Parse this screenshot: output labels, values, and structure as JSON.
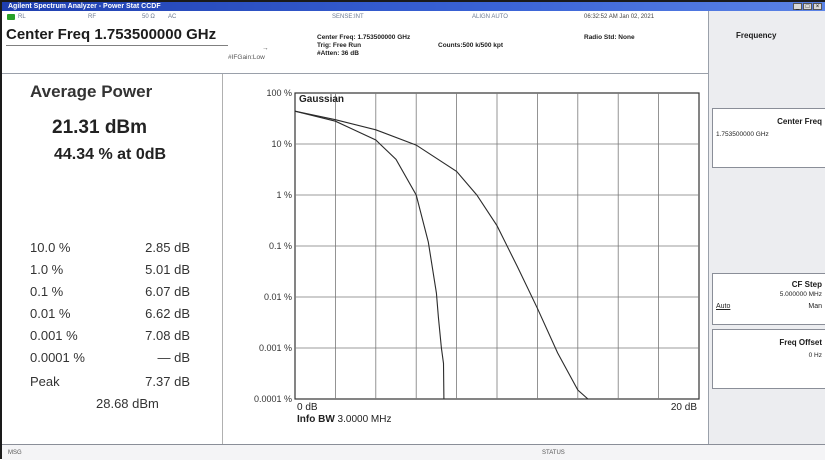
{
  "window": {
    "title": "Agilent Spectrum Analyzer - Power Stat CCDF"
  },
  "meas_bar": {
    "indicator_rl": "RL",
    "hidden_labels": [
      "RF",
      "50 Ω",
      "AC",
      "SENSE:INT",
      "ALIGN AUTO"
    ],
    "timestamp": "06:32:52 AM Jan 02, 2021",
    "center_freq_big": "Center Freq 1.753500000 GHz",
    "ifgain": "#IFGain:Low",
    "center_freq_small": "Center Freq: 1.753500000 GHz",
    "trig": "Trig: Free Run",
    "counts": "Counts:500 k/500 kpt",
    "atten": "#Atten: 36 dB",
    "radio_std": "Radio Std: None"
  },
  "left": {
    "avg_title": "Average Power",
    "avg_dbm": "21.31 dBm",
    "avg_pct": "44.34 % at 0dB",
    "rows": [
      {
        "label": "10.0 %",
        "value": "2.85 dB"
      },
      {
        "label": "1.0 %",
        "value": "5.01 dB"
      },
      {
        "label": "0.1 %",
        "value": "6.07 dB"
      },
      {
        "label": "0.01 %",
        "value": "6.62 dB"
      },
      {
        "label": "0.001 %",
        "value": "7.08 dB"
      },
      {
        "label": "0.0001 %",
        "value": "— dB"
      },
      {
        "label": "Peak",
        "value": "7.37 dB"
      }
    ],
    "peak_dbm": "28.68 dBm"
  },
  "plot": {
    "label": "Gaussian",
    "y_ticks": [
      "100 %",
      "10 %",
      "1 %",
      "0.1 %",
      "0.01 %",
      "0.001 %",
      "0.0001 %"
    ],
    "x_start": "0 dB",
    "x_end": "20 dB",
    "info_bw_label": "Info BW",
    "info_bw_value": "3.0000 MHz"
  },
  "chart_data": {
    "type": "line",
    "title": "Gaussian",
    "xlabel": "",
    "ylabel": "",
    "xlim": [
      0,
      20
    ],
    "ylim_log_percent": [
      0.0001,
      100
    ],
    "y_scale": "log",
    "grid": true,
    "series": [
      {
        "x": [
          0,
          2,
          4,
          6,
          8,
          9,
          10,
          11,
          12,
          13,
          14,
          14.5
        ],
        "y": [
          44,
          30,
          19,
          9.5,
          2.9,
          1.0,
          0.25,
          0.04,
          0.006,
          0.0008,
          0.00015,
          0.0001
        ]
      },
      {
        "x": [
          0,
          2,
          4,
          5,
          6,
          6.6,
          7,
          7.1,
          7.25,
          7.35,
          7.37
        ],
        "y": [
          44,
          28,
          12,
          5.0,
          1.0,
          0.12,
          0.012,
          0.004,
          0.001,
          0.0005,
          0.0001
        ]
      }
    ]
  },
  "softkeys": {
    "header": "Frequency",
    "center_freq_title": "Center Freq",
    "center_freq_value": "1.753500000 GHz",
    "cf_step_title": "CF Step",
    "cf_step_value": "5.000000 MHz",
    "cf_step_auto": "Auto",
    "cf_step_man": "Man",
    "freq_offset_title": "Freq Offset",
    "freq_offset_value": "0 Hz"
  },
  "bottom": {
    "left": "MSG",
    "status": "STATUS"
  },
  "colors": {
    "title_bar": "#2b4fc4",
    "trace": "#333333",
    "grid": "#7a7a7a",
    "background": "#ffffff"
  }
}
